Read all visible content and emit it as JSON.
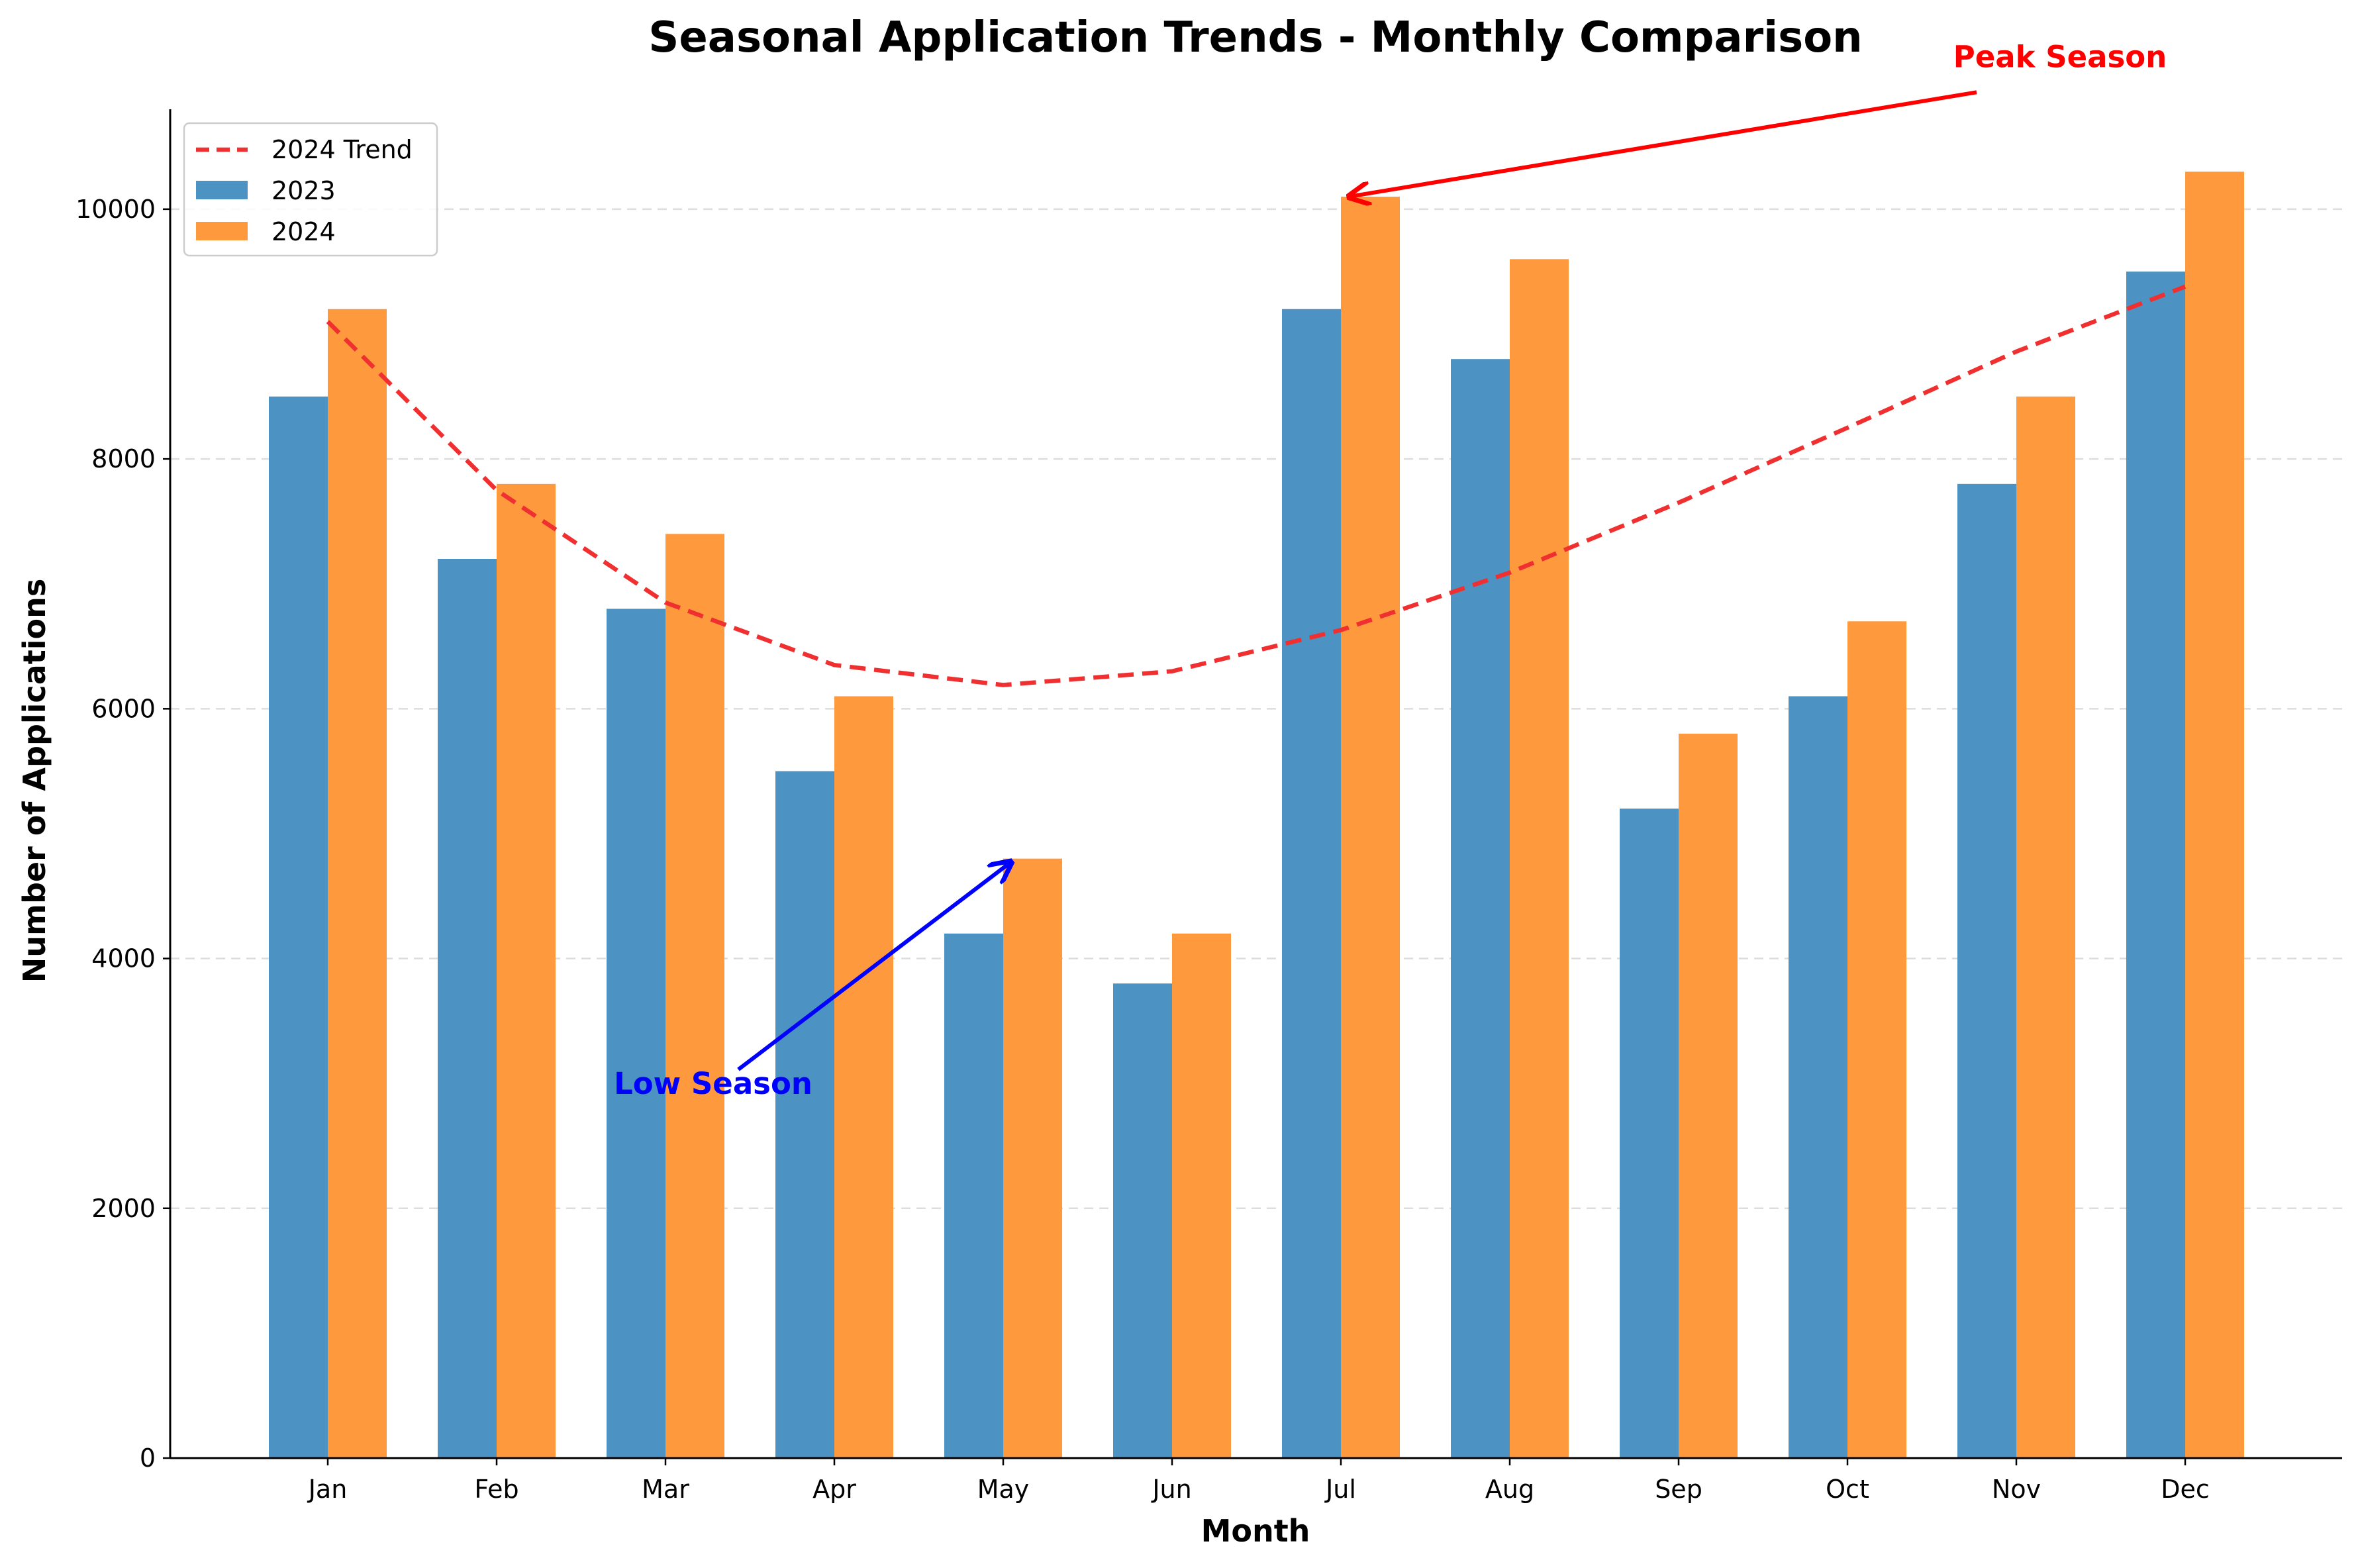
{
  "chart_data": {
    "type": "bar",
    "title": "Seasonal Application Trends - Monthly Comparison",
    "xlabel": "Month",
    "ylabel": "Number of Applications",
    "categories": [
      "Jan",
      "Feb",
      "Mar",
      "Apr",
      "May",
      "Jun",
      "Jul",
      "Aug",
      "Sep",
      "Oct",
      "Nov",
      "Dec"
    ],
    "ylim": [
      0,
      10800
    ],
    "yticks": [
      0,
      2000,
      4000,
      6000,
      8000,
      10000
    ],
    "ytick_labels": [
      "0",
      "2000",
      "4000",
      "6000",
      "8000",
      "10000"
    ],
    "grid": "y-dashed",
    "legend_position": "top-left",
    "series": [
      {
        "name": "2023",
        "kind": "bar",
        "color": "#4c92c3",
        "values": [
          8500,
          7200,
          6800,
          5500,
          4200,
          3800,
          9200,
          8800,
          5200,
          6100,
          7800,
          9500
        ]
      },
      {
        "name": "2024",
        "kind": "bar",
        "color": "#ff993e",
        "values": [
          9200,
          7800,
          7400,
          6100,
          4800,
          4200,
          10100,
          9600,
          5800,
          6700,
          8500,
          10300
        ]
      },
      {
        "name": "2024 Trend",
        "kind": "line",
        "style": "dashed",
        "color": "#f03030",
        "values": [
          9100,
          7750,
          6850,
          6350,
          6190,
          6300,
          6630,
          7090,
          7650,
          8250,
          8860,
          9380
        ]
      }
    ],
    "legend": [
      "2024 Trend",
      "2023",
      "2024"
    ],
    "annotations": [
      {
        "text": "Peak Season",
        "color": "#ff0000",
        "point": {
          "category": "Jul",
          "value": 10100
        },
        "text_anchor": {
          "category": "Nov",
          "value": 11000
        }
      },
      {
        "text": "Low Season",
        "color": "#0000ff",
        "point": {
          "category": "May",
          "value": 4800
        },
        "text_anchor": {
          "category": "Mar",
          "value": 3000
        }
      }
    ]
  }
}
